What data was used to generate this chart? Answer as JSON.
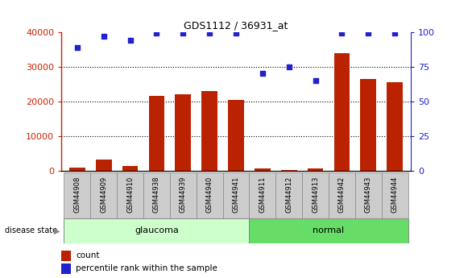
{
  "title": "GDS1112 / 36931_at",
  "samples": [
    "GSM44908",
    "GSM44909",
    "GSM44910",
    "GSM44938",
    "GSM44939",
    "GSM44940",
    "GSM44941",
    "GSM44911",
    "GSM44912",
    "GSM44913",
    "GSM44942",
    "GSM44943",
    "GSM44944"
  ],
  "counts": [
    1000,
    3200,
    1500,
    21500,
    22000,
    23000,
    20500,
    700,
    200,
    700,
    34000,
    26500,
    25500
  ],
  "percentile": [
    89,
    97,
    94,
    99,
    99,
    99,
    99,
    70,
    75,
    65,
    99,
    99,
    99
  ],
  "groups": [
    "glaucoma",
    "glaucoma",
    "glaucoma",
    "glaucoma",
    "glaucoma",
    "glaucoma",
    "glaucoma",
    "normal",
    "normal",
    "normal",
    "normal",
    "normal",
    "normal"
  ],
  "ylim_left": [
    0,
    40000
  ],
  "ylim_right": [
    0,
    100
  ],
  "yticks_left": [
    0,
    10000,
    20000,
    30000,
    40000
  ],
  "yticks_right": [
    0,
    25,
    50,
    75,
    100
  ],
  "bar_color": "#bb2200",
  "dot_color": "#2222cc",
  "glaucoma_bg": "#ccffcc",
  "normal_bg": "#66dd66",
  "tick_bg": "#cccccc",
  "grid_color": "black",
  "left_label_color": "#cc2200",
  "right_label_color": "#2222cc",
  "legend_count_label": "count",
  "legend_pct_label": "percentile rank within the sample",
  "group_label": "disease state"
}
